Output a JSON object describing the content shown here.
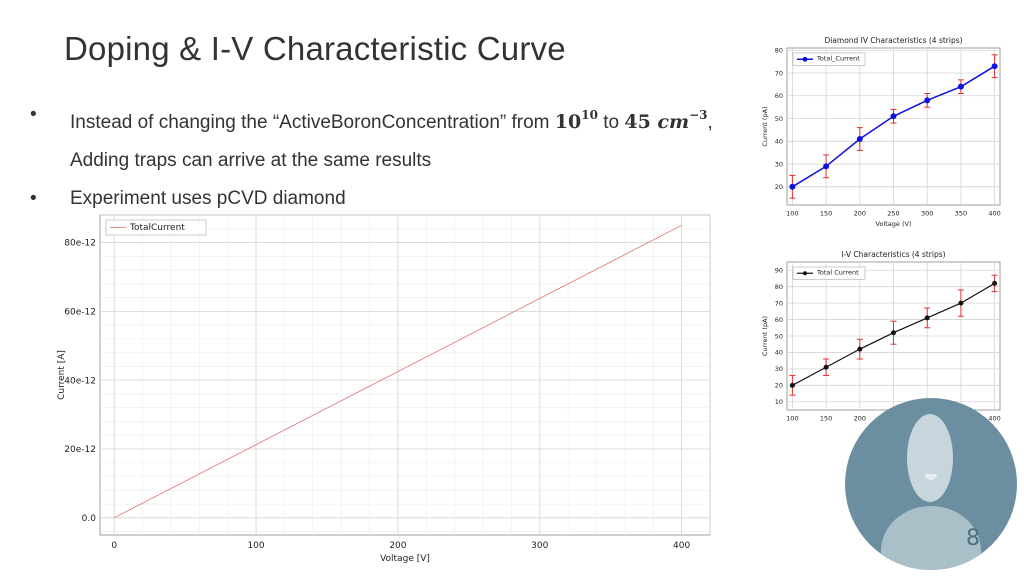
{
  "slide": {
    "title": "Doping & I-V Characteristic Curve",
    "bullet1_pre": "Instead of changing the “ActiveBoronConcentration” from ",
    "bullet1_exp_base": "10",
    "bullet1_exp_sup": "10",
    "bullet1_mid": " to ",
    "bullet1_val": "45 ",
    "bullet1_unit": "cm",
    "bullet1_unit_sup": "−3",
    "bullet1_comma": ",",
    "bullet1_line2": "Adding traps can arrive at the same results",
    "bullet2": "Experiment uses pCVD diamond",
    "bullet_symbol": "•",
    "slide_number": "8"
  },
  "colors": {
    "sim_line": "#e07070",
    "chart2_line": "#1010e0",
    "chart3_line": "#111111",
    "errorbar": "#e03030",
    "avatar_bg": "#6b8fa0"
  },
  "chart_data": [
    {
      "type": "line",
      "title": "",
      "xlabel": "Voltage [V]",
      "ylabel": "Current [A]",
      "xlim": [
        -10,
        420
      ],
      "ylim": [
        -5,
        88
      ],
      "x_ticks": [
        0,
        100,
        200,
        300,
        400
      ],
      "x_tick_labels": [
        "0",
        "100",
        "200",
        "300",
        "400"
      ],
      "y_ticks": [
        0,
        20,
        40,
        60,
        80
      ],
      "y_tick_labels": [
        "0.0",
        "20e-12",
        "40e-12",
        "60e-12",
        "80e-12"
      ],
      "grid": true,
      "legend": "top-left",
      "series": [
        {
          "name": "TotalCurrent",
          "x": [
            0,
            400
          ],
          "y": [
            0,
            85
          ]
        }
      ]
    },
    {
      "type": "line",
      "title": "Diamond IV Characteristics (4 strips)",
      "xlabel": "Voltage (V)",
      "ylabel": "Current (pA)",
      "xlim": [
        92,
        408
      ],
      "ylim": [
        12,
        81
      ],
      "x_ticks": [
        100,
        150,
        200,
        250,
        300,
        350,
        400
      ],
      "y_ticks": [
        20,
        30,
        40,
        50,
        60,
        70,
        80
      ],
      "grid": true,
      "legend": "top-left",
      "series": [
        {
          "name": "Total_Current",
          "x": [
            100,
            150,
            200,
            250,
            300,
            350,
            400
          ],
          "y": [
            20,
            29,
            41,
            51,
            58,
            64,
            73
          ],
          "yerr": [
            5,
            5,
            5,
            3,
            3,
            3,
            5
          ]
        }
      ]
    },
    {
      "type": "line",
      "title": "I-V Characteristics (4 strips)",
      "xlabel": "Voltage (V)",
      "ylabel": "Current (pA)",
      "xlim": [
        92,
        408
      ],
      "ylim": [
        5,
        95
      ],
      "x_ticks": [
        100,
        150,
        200,
        250,
        300,
        350,
        400
      ],
      "y_ticks": [
        10,
        20,
        30,
        40,
        50,
        60,
        70,
        80,
        90
      ],
      "grid": true,
      "legend": "top-left",
      "series": [
        {
          "name": "Total Current",
          "x": [
            100,
            150,
            200,
            250,
            300,
            350,
            400
          ],
          "y": [
            20,
            31,
            42,
            52,
            61,
            70,
            82
          ],
          "yerr": [
            6,
            5,
            6,
            7,
            6,
            8,
            5
          ]
        }
      ]
    }
  ]
}
